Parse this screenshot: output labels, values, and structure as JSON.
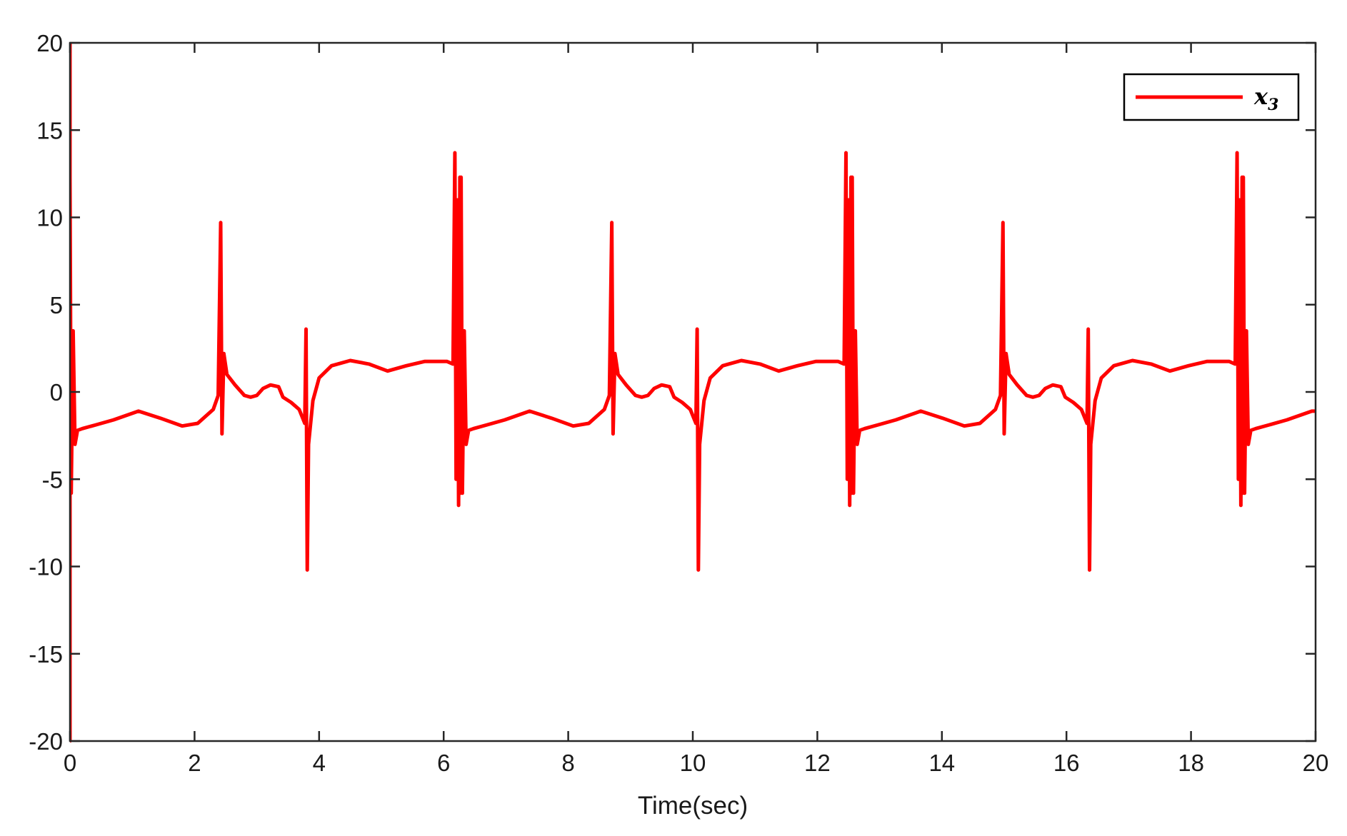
{
  "chart_data": {
    "type": "line",
    "title": "",
    "xlabel": "Time(sec)",
    "ylabel": "",
    "xlim": [
      0,
      20
    ],
    "ylim": [
      -20,
      20
    ],
    "x_ticks": [
      0,
      2,
      4,
      6,
      8,
      10,
      12,
      14,
      16,
      18,
      20
    ],
    "y_ticks": [
      -20,
      -15,
      -10,
      -5,
      0,
      5,
      10,
      15,
      20
    ],
    "grid": false,
    "legend": {
      "placement": "top-right",
      "entries": [
        {
          "name": "x",
          "subscript": "3",
          "color": "#ff0000"
        }
      ]
    },
    "period": 6.28,
    "series": [
      {
        "name": "x3",
        "color": "#ff0000",
        "cycle_points": [
          [
            0.0,
            12.3
          ],
          [
            0.02,
            -5.8
          ],
          [
            0.05,
            3.5
          ],
          [
            0.08,
            -3.0
          ],
          [
            0.12,
            -2.2
          ],
          [
            0.2,
            -2.1
          ],
          [
            0.4,
            -1.9
          ],
          [
            0.7,
            -1.6
          ],
          [
            1.1,
            -1.1
          ],
          [
            1.45,
            -1.5
          ],
          [
            1.8,
            -1.95
          ],
          [
            2.05,
            -1.8
          ],
          [
            2.3,
            -1.0
          ],
          [
            2.38,
            -0.2
          ],
          [
            2.42,
            9.7
          ],
          [
            2.44,
            -2.4
          ],
          [
            2.47,
            2.2
          ],
          [
            2.52,
            1.0
          ],
          [
            2.65,
            0.4
          ],
          [
            2.8,
            -0.2
          ],
          [
            2.9,
            -0.3
          ],
          [
            3.0,
            -0.2
          ],
          [
            3.1,
            0.2
          ],
          [
            3.22,
            0.4
          ],
          [
            3.35,
            0.3
          ],
          [
            3.42,
            -0.3
          ],
          [
            3.55,
            -0.6
          ],
          [
            3.68,
            -1.0
          ],
          [
            3.77,
            -1.8
          ],
          [
            3.79,
            3.6
          ],
          [
            3.81,
            -10.2
          ],
          [
            3.83,
            -3.0
          ],
          [
            3.9,
            -0.5
          ],
          [
            4.0,
            0.8
          ],
          [
            4.2,
            1.5
          ],
          [
            4.5,
            1.8
          ],
          [
            4.8,
            1.6
          ],
          [
            5.1,
            1.2
          ],
          [
            5.4,
            1.5
          ],
          [
            5.7,
            1.75
          ],
          [
            6.05,
            1.75
          ],
          [
            6.15,
            1.6
          ],
          [
            6.18,
            13.7
          ],
          [
            6.2,
            -5.0
          ],
          [
            6.22,
            11.0
          ],
          [
            6.24,
            -6.5
          ],
          [
            6.26,
            12.3
          ],
          [
            6.27,
            -5.8
          ]
        ]
      }
    ]
  },
  "legend_label": "x",
  "legend_subscript": "3"
}
